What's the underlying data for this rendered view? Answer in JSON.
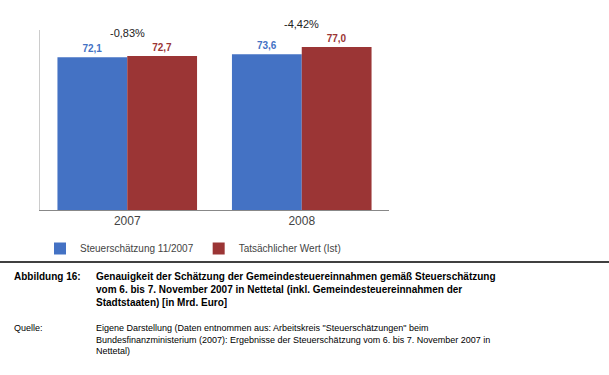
{
  "chart_data": {
    "type": "bar",
    "categories": [
      "2007",
      "2008"
    ],
    "series": [
      {
        "name": "Steuerschätzung 11/2007",
        "color": "#4472C4",
        "values": [
          72.1,
          73.6
        ],
        "value_labels": [
          "72,1",
          "73,6"
        ]
      },
      {
        "name": "Tatsächlicher Wert (Ist)",
        "color": "#9B3535",
        "values": [
          72.7,
          77.0
        ],
        "value_labels": [
          "72,7",
          "77,0"
        ]
      }
    ],
    "ylim": [
      0,
      85
    ],
    "grid": false,
    "legend": "bottom",
    "data_labels": true,
    "tick_labels": "x",
    "annotations": [
      {
        "text": "-0,83%",
        "category": "2007"
      },
      {
        "text": "-4,42%",
        "category": "2008"
      },
      {
        "text": "Abbildung 16:"
      },
      {
        "text": "Genauigkeit der Schätzung der Gemeindesteuereinnahmen gemäß Steuerschätzung\nvom 6. bis 7. November 2007 in Nettetal (inkl. Gemeindesteuereinnahmen der\nStadtstaaten) [in Mrd. Euro]"
      },
      {
        "text": "Quelle:"
      },
      {
        "text": "Eigene Darstellung (Daten entnommen aus: Arbeitskreis \"Steuerschätzungen\" beim\nBundesfinanzministerium (2007): Ergebnisse der Steuerschätzung vom 6. bis 7. November 2007 in\nNettetal)"
      }
    ]
  }
}
